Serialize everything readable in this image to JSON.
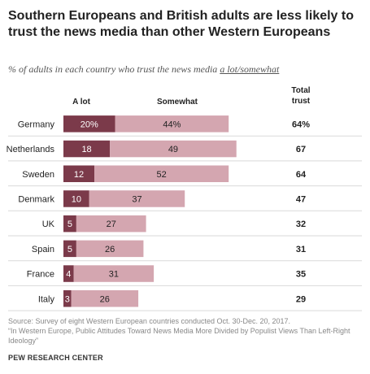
{
  "title": "Southern Europeans and British adults are less likely to trust the news media than other Western Europeans",
  "subtitle_prefix": "% of adults in each country who trust the news media ",
  "subtitle_underlined": "a lot/somewhat",
  "source_line1": "Source: Survey of eight Western European countries conducted Oct. 30-Dec. 20, 2017.",
  "source_line2": "“In Western Europe, Public Attitudes Toward News Media More Divided by Populist Views Than Left-Right Ideology”",
  "organization": "PEW RESEARCH CENTER",
  "colors": {
    "a_lot": "#7b3a4a",
    "somewhat": "#d4a6b0",
    "row_rule": "#d9d9d9"
  },
  "chart_data": {
    "type": "bar",
    "orientation": "horizontal",
    "stacked": true,
    "categories": [
      "Germany",
      "Netherlands",
      "Sweden",
      "Denmark",
      "UK",
      "Spain",
      "France",
      "Italy"
    ],
    "series": [
      {
        "name": "A lot",
        "values": [
          20,
          18,
          12,
          10,
          5,
          5,
          4,
          3
        ],
        "labels": [
          "20%",
          "18",
          "12",
          "10",
          "5",
          "5",
          "4",
          "3"
        ]
      },
      {
        "name": "Somewhat",
        "values": [
          44,
          49,
          52,
          37,
          27,
          26,
          31,
          26
        ],
        "labels": [
          "44%",
          "49",
          "52",
          "37",
          "27",
          "26",
          "31",
          "26"
        ]
      }
    ],
    "total_header": "Total trust",
    "total_labels": [
      "64%",
      "67",
      "64",
      "47",
      "32",
      "31",
      "35",
      "29"
    ],
    "xlim": [
      0,
      100
    ]
  }
}
